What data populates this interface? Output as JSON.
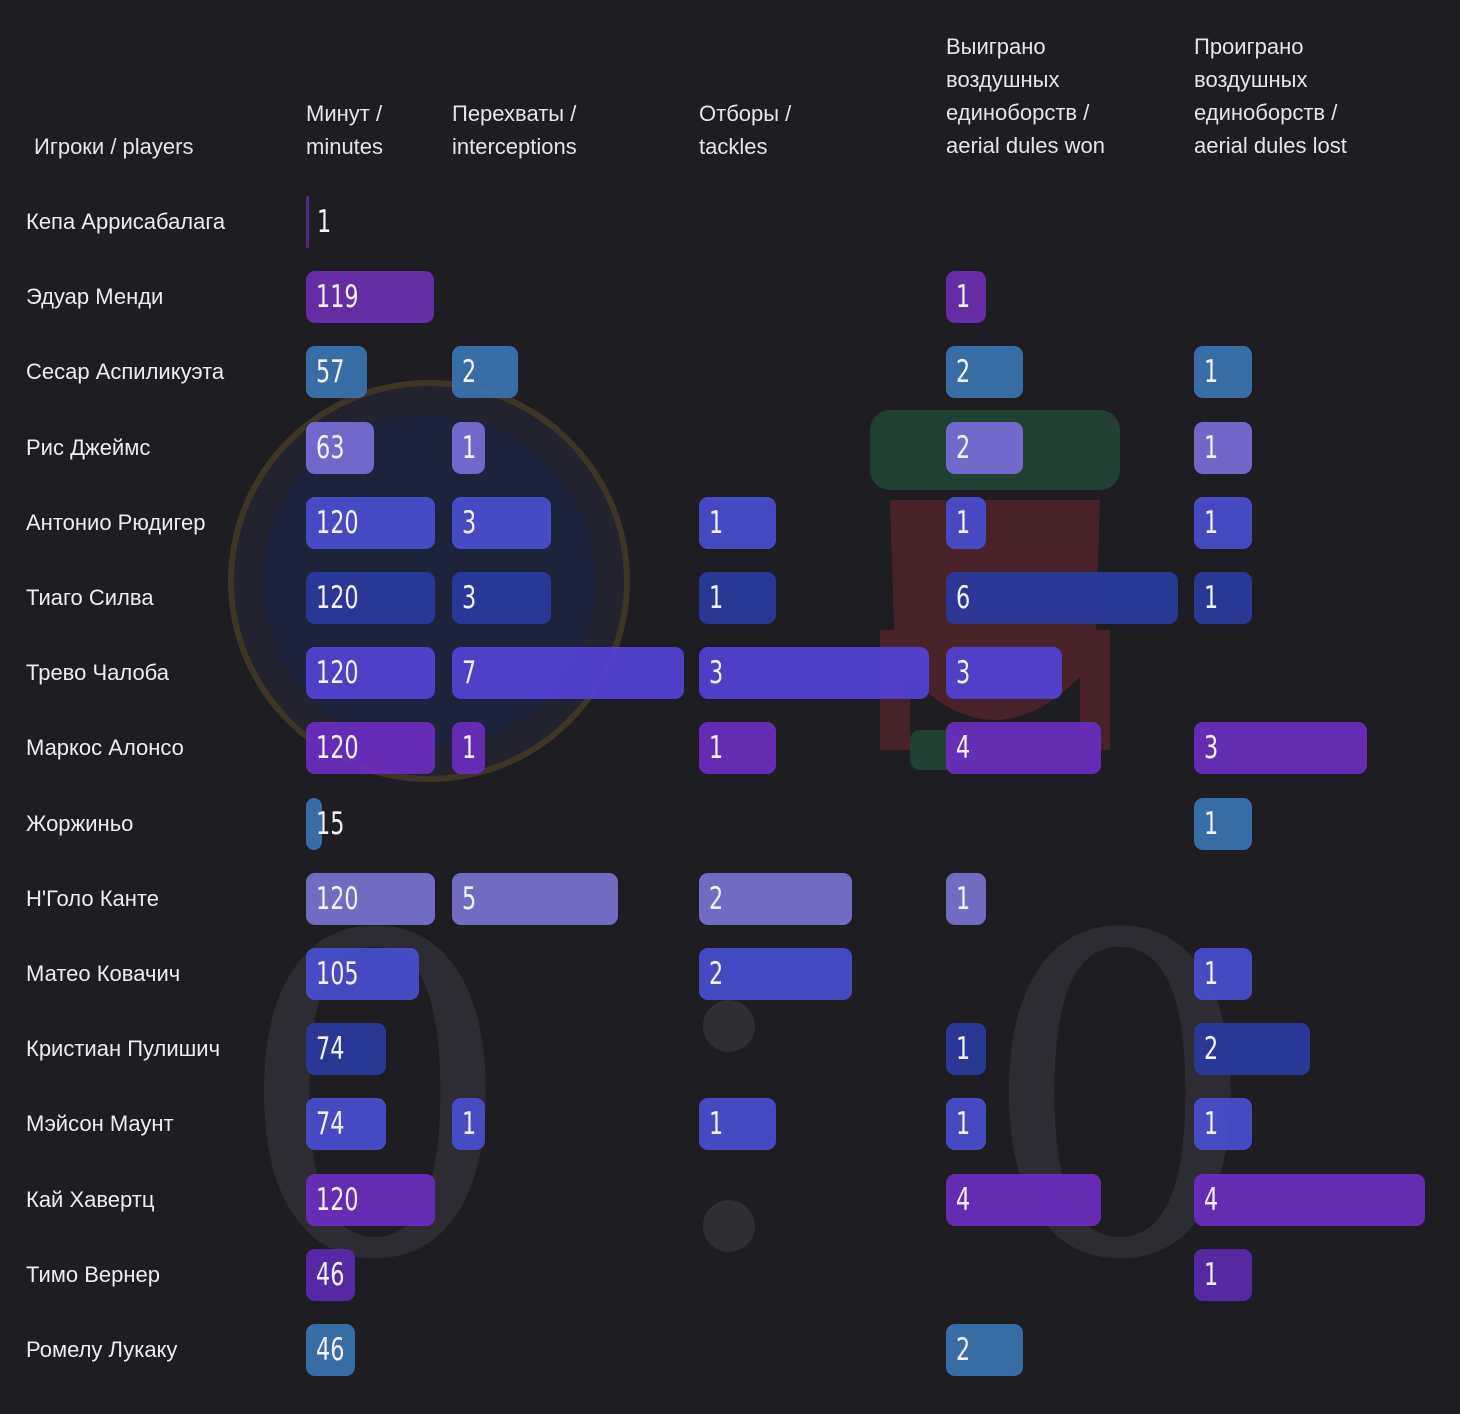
{
  "score": {
    "home": "0",
    "separator": ":",
    "away": "0"
  },
  "chart_data": {
    "type": "bar",
    "columns": [
      {
        "key": "minutes",
        "header": "Минут /\nminutes"
      },
      {
        "key": "interceptions",
        "header": "Перехваты /\ninterceptions"
      },
      {
        "key": "tackles",
        "header": "Отборы /\ntackles"
      },
      {
        "key": "aerial_won",
        "header": "Выиграно\nвоздушных\nединоборств /\naerial dules won"
      },
      {
        "key": "aerial_lost",
        "header": "Проиграно\nвоздушных\nединоборств /\naerial dules lost"
      }
    ],
    "players_header": "Игроки / players",
    "rows": [
      {
        "player": "Кепа Аррисабалага",
        "color": "#5a2a8a",
        "minutes": 1,
        "interceptions": null,
        "tackles": null,
        "aerial_won": null,
        "aerial_lost": null
      },
      {
        "player": "Эдуар Менди",
        "color": "#6a2fb0",
        "minutes": 119,
        "interceptions": null,
        "tackles": null,
        "aerial_won": 1,
        "aerial_lost": null
      },
      {
        "player": "Сесар Аспиликуэта",
        "color": "#3a73b0",
        "minutes": 57,
        "interceptions": 2,
        "tackles": null,
        "aerial_won": 2,
        "aerial_lost": 1
      },
      {
        "player": "Рис Джеймс",
        "color": "#7a6ed8",
        "minutes": 63,
        "interceptions": 1,
        "tackles": null,
        "aerial_won": 2,
        "aerial_lost": 1
      },
      {
        "player": "Антонио Рюдигер",
        "color": "#4a4ed0",
        "minutes": 120,
        "interceptions": 3,
        "tackles": 1,
        "aerial_won": 1,
        "aerial_lost": 1
      },
      {
        "player": "Тиаго Силва",
        "color": "#2a3aa0",
        "minutes": 120,
        "interceptions": 3,
        "tackles": 1,
        "aerial_won": 6,
        "aerial_lost": 1
      },
      {
        "player": "Трево Чалоба",
        "color": "#5442d6",
        "minutes": 120,
        "interceptions": 7,
        "tackles": 3,
        "aerial_won": 3,
        "aerial_lost": null
      },
      {
        "player": "Маркос Алонсо",
        "color": "#6a2ec0",
        "minutes": 120,
        "interceptions": 1,
        "tackles": 1,
        "aerial_won": 4,
        "aerial_lost": 3
      },
      {
        "player": "Жоржиньо",
        "color": "#3a73b0",
        "minutes": 15,
        "interceptions": null,
        "tackles": null,
        "aerial_won": null,
        "aerial_lost": 1
      },
      {
        "player": "Н'Голо Канте",
        "color": "#7a72d0",
        "minutes": 120,
        "interceptions": 5,
        "tackles": 2,
        "aerial_won": 1,
        "aerial_lost": null
      },
      {
        "player": "Матео Ковачич",
        "color": "#4a4ed0",
        "minutes": 105,
        "interceptions": null,
        "tackles": 2,
        "aerial_won": null,
        "aerial_lost": 1
      },
      {
        "player": "Кристиан Пулишич",
        "color": "#2a3aa0",
        "minutes": 74,
        "interceptions": null,
        "tackles": null,
        "aerial_won": 1,
        "aerial_lost": 2
      },
      {
        "player": "Мэйсон Маунт",
        "color": "#4a4ed0",
        "minutes": 74,
        "interceptions": 1,
        "tackles": 1,
        "aerial_won": 1,
        "aerial_lost": 1
      },
      {
        "player": "Кай Хавертц",
        "color": "#6a2ec0",
        "minutes": 120,
        "interceptions": null,
        "tackles": null,
        "aerial_won": 4,
        "aerial_lost": 4
      },
      {
        "player": "Тимо Вернер",
        "color": "#5a2ab0",
        "minutes": 46,
        "interceptions": null,
        "tackles": null,
        "aerial_won": null,
        "aerial_lost": 1
      },
      {
        "player": "Ромелу Лукаку",
        "color": "#3a73b0",
        "minutes": 46,
        "interceptions": null,
        "tackles": null,
        "aerial_won": 2,
        "aerial_lost": null
      }
    ]
  }
}
